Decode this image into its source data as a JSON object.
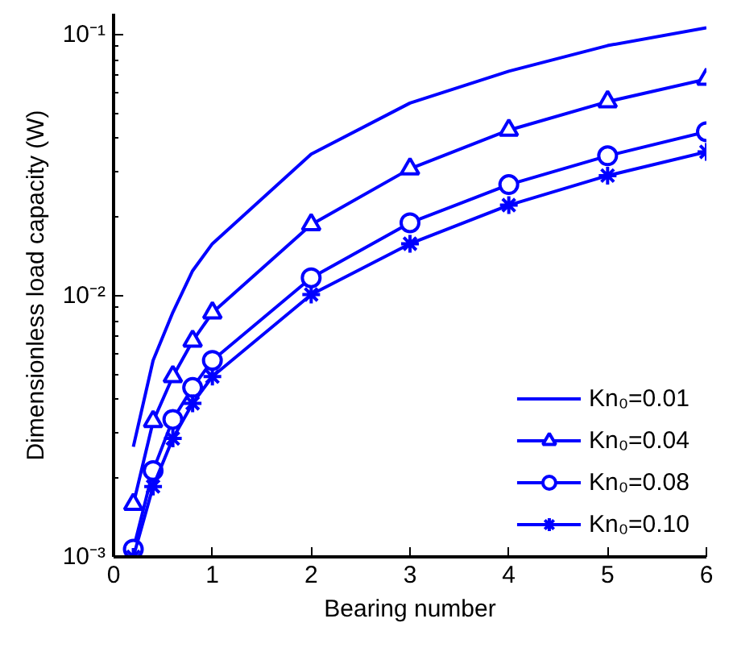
{
  "chart_data": {
    "type": "line",
    "xlabel": "Bearing number",
    "ylabel": "Dimensionless load capacity (W)",
    "x": [
      0.2,
      0.4,
      0.6,
      0.8,
      1,
      2,
      3,
      4,
      5,
      6
    ],
    "series": [
      {
        "name": "Kn₀=0.01",
        "color": "#0000ff",
        "marker": "none",
        "values": [
          0.00264,
          0.00565,
          0.00863,
          0.01245,
          0.0158,
          0.0348,
          0.0546,
          0.0723,
          0.0906,
          0.106
        ]
      },
      {
        "name": "Kn₀=0.04",
        "color": "#0000ff",
        "marker": "triangle",
        "values": [
          0.00159,
          0.0033,
          0.0049,
          0.0067,
          0.0086,
          0.0187,
          0.0306,
          0.043,
          0.0553,
          0.0674
        ]
      },
      {
        "name": "Kn₀=0.08",
        "color": "#0000ff",
        "marker": "circle",
        "values": [
          0.00107,
          0.00214,
          0.00336,
          0.00445,
          0.00565,
          0.0117,
          0.019,
          0.0266,
          0.0343,
          0.0424
        ]
      },
      {
        "name": "Kn₀=0.10",
        "color": "#0000ff",
        "marker": "cross",
        "values": [
          0.001,
          0.00186,
          0.00284,
          0.00387,
          0.0049,
          0.0101,
          0.0158,
          0.0222,
          0.0288,
          0.0355
        ]
      }
    ],
    "log": "y",
    "grid": false,
    "legend": "bottom right",
    "line_style": "solid",
    "xlim": [
      0,
      6
    ],
    "xticks": [
      0,
      1,
      2,
      3,
      4,
      5,
      6
    ],
    "ylim": [
      0.001,
      0.12
    ],
    "yticks": [
      {
        "value": 0.001,
        "label": "10⁻³"
      },
      {
        "value": 0.01,
        "label": "10⁻²"
      },
      {
        "value": 0.1,
        "label": "10⁻¹"
      }
    ]
  }
}
